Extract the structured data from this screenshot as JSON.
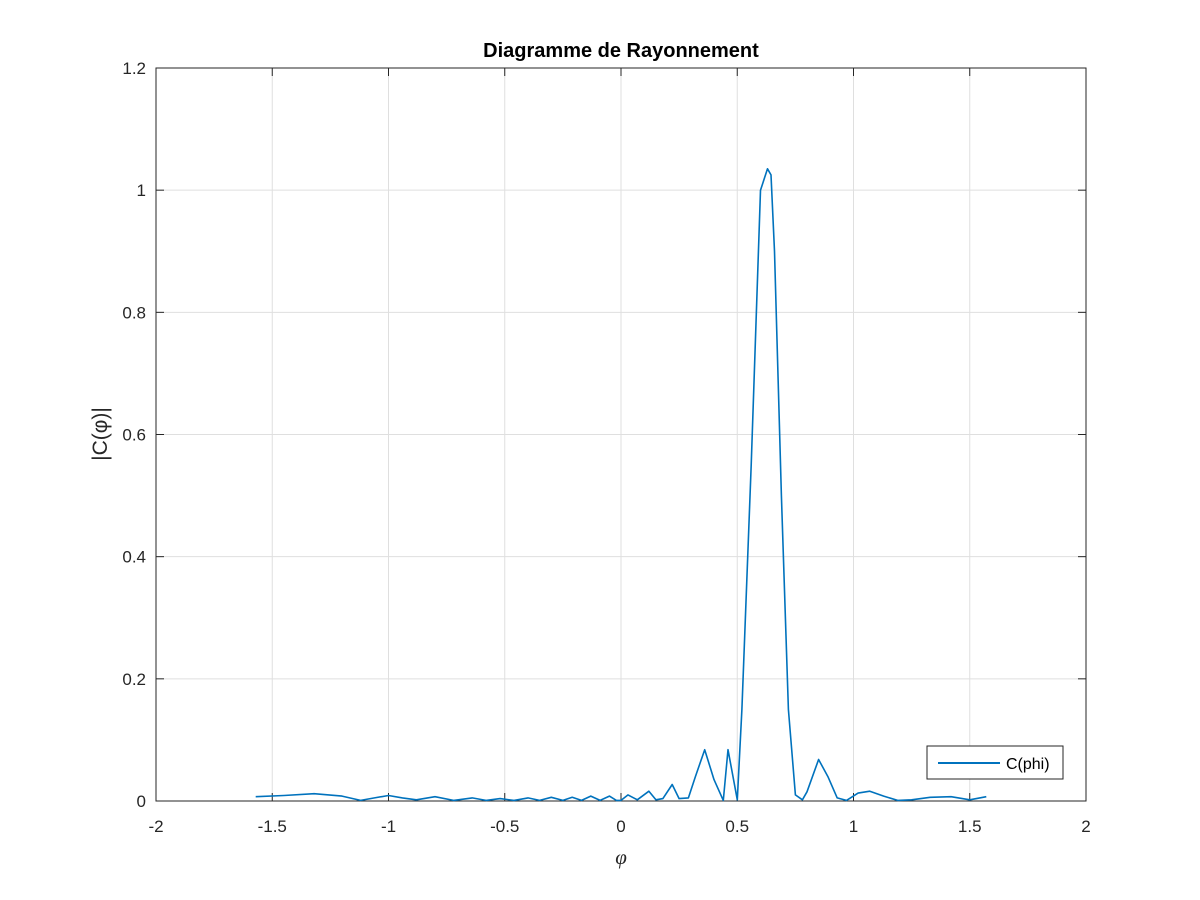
{
  "chart_data": {
    "type": "line",
    "title": "Diagramme de Rayonnement",
    "xlabel": "φ",
    "ylabel": "|C(φ)|",
    "xlim": [
      -2,
      2
    ],
    "ylim": [
      0,
      1.2
    ],
    "xticks": [
      "-2",
      "-1.5",
      "-1",
      "-0.5",
      "0",
      "0.5",
      "1",
      "1.5",
      "2"
    ],
    "yticks": [
      "0",
      "0.2",
      "0.4",
      "0.6",
      "0.8",
      "1",
      "1.2"
    ],
    "grid": true,
    "legend_placement": "bottom-right",
    "series": [
      {
        "name": "C(phi)",
        "color": "#0072bd",
        "x": [
          -1.571,
          -1.45,
          -1.32,
          -1.2,
          -1.12,
          -1.06,
          -1.0,
          -0.94,
          -0.88,
          -0.8,
          -0.72,
          -0.64,
          -0.58,
          -0.52,
          -0.46,
          -0.4,
          -0.35,
          -0.3,
          -0.25,
          -0.21,
          -0.17,
          -0.13,
          -0.09,
          -0.05,
          -0.02,
          0.0,
          0.03,
          0.07,
          0.12,
          0.15,
          0.18,
          0.22,
          0.25,
          0.29,
          0.32,
          0.36,
          0.4,
          0.44,
          0.46,
          0.5,
          0.52,
          0.56,
          0.6,
          0.63,
          0.645,
          0.66,
          0.69,
          0.72,
          0.75,
          0.78,
          0.8,
          0.85,
          0.89,
          0.93,
          0.97,
          1.02,
          1.07,
          1.13,
          1.19,
          1.25,
          1.33,
          1.42,
          1.5,
          1.571
        ],
        "values": [
          0.007,
          0.009,
          0.012,
          0.008,
          0.001,
          0.005,
          0.009,
          0.005,
          0.002,
          0.007,
          0.001,
          0.005,
          0.001,
          0.004,
          0.001,
          0.005,
          0.001,
          0.006,
          0.001,
          0.006,
          0.001,
          0.008,
          0.001,
          0.008,
          0.001,
          0.001,
          0.01,
          0.002,
          0.016,
          0.002,
          0.004,
          0.027,
          0.004,
          0.005,
          0.04,
          0.084,
          0.035,
          0.001,
          0.084,
          0.002,
          0.15,
          0.55,
          1.0,
          1.035,
          1.025,
          0.9,
          0.5,
          0.15,
          0.01,
          0.002,
          0.015,
          0.068,
          0.04,
          0.005,
          0.001,
          0.013,
          0.016,
          0.008,
          0.001,
          0.002,
          0.006,
          0.007,
          0.002,
          0.007
        ]
      }
    ]
  }
}
